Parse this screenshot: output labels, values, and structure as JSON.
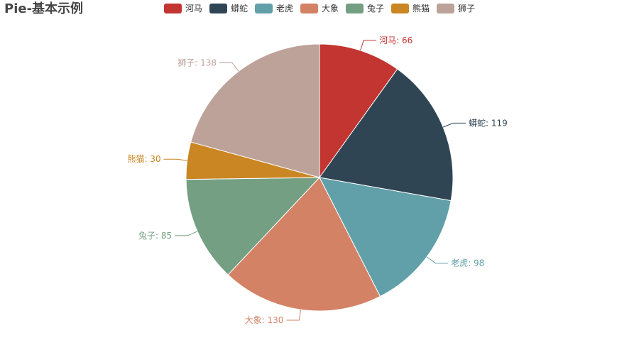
{
  "chart_data": {
    "type": "pie",
    "title": "Pie-基本示例",
    "legend_position": "top",
    "categories": [
      "河马",
      "蟒蛇",
      "老虎",
      "大象",
      "兔子",
      "熊猫",
      "狮子"
    ],
    "values": [
      66,
      119,
      98,
      130,
      85,
      30,
      138
    ],
    "colors": [
      "#c23531",
      "#2f4554",
      "#61a0a8",
      "#d48265",
      "#749f83",
      "#ca8622",
      "#bda29a"
    ],
    "label_format": "{name}: {value}"
  }
}
